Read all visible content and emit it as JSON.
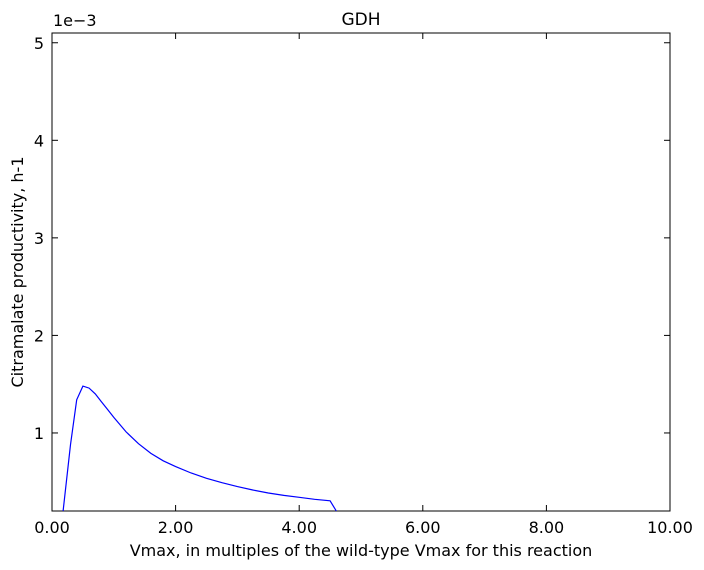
{
  "chart_data": {
    "type": "line",
    "title": "GDH",
    "xlabel": "Vmax, in multiples of the wild-type Vmax for this reaction",
    "ylabel": "Citramalate productivity, h-1",
    "y_offset_label": "1e−3",
    "xlim": [
      0,
      10
    ],
    "ylim": [
      0.0002,
      0.0051
    ],
    "x_ticks": [
      0,
      2,
      4,
      6,
      8,
      10
    ],
    "x_tick_labels": [
      "0.00",
      "2.00",
      "4.00",
      "6.00",
      "8.00",
      "10.00"
    ],
    "y_ticks": [
      0.001,
      0.002,
      0.003,
      0.004,
      0.005
    ],
    "y_tick_labels": [
      "1",
      "2",
      "3",
      "4",
      "5"
    ],
    "grid": false,
    "series": [
      {
        "color": "#0000ff",
        "x": [
          0.18,
          0.3,
          0.4,
          0.5,
          0.6,
          0.7,
          0.8,
          0.9,
          1.0,
          1.2,
          1.4,
          1.6,
          1.8,
          2.0,
          2.25,
          2.5,
          2.75,
          3.0,
          3.25,
          3.5,
          3.75,
          4.0,
          4.25,
          4.5,
          4.6
        ],
        "y": [
          0.0002,
          0.00088,
          0.00134,
          0.00148,
          0.00146,
          0.0014,
          0.00132,
          0.00124,
          0.00116,
          0.00101,
          0.00089,
          0.00079,
          0.000715,
          0.000655,
          0.00059,
          0.000535,
          0.00049,
          0.00045,
          0.000415,
          0.000385,
          0.00036,
          0.00034,
          0.00032,
          0.000305,
          0.0002
        ]
      }
    ]
  }
}
